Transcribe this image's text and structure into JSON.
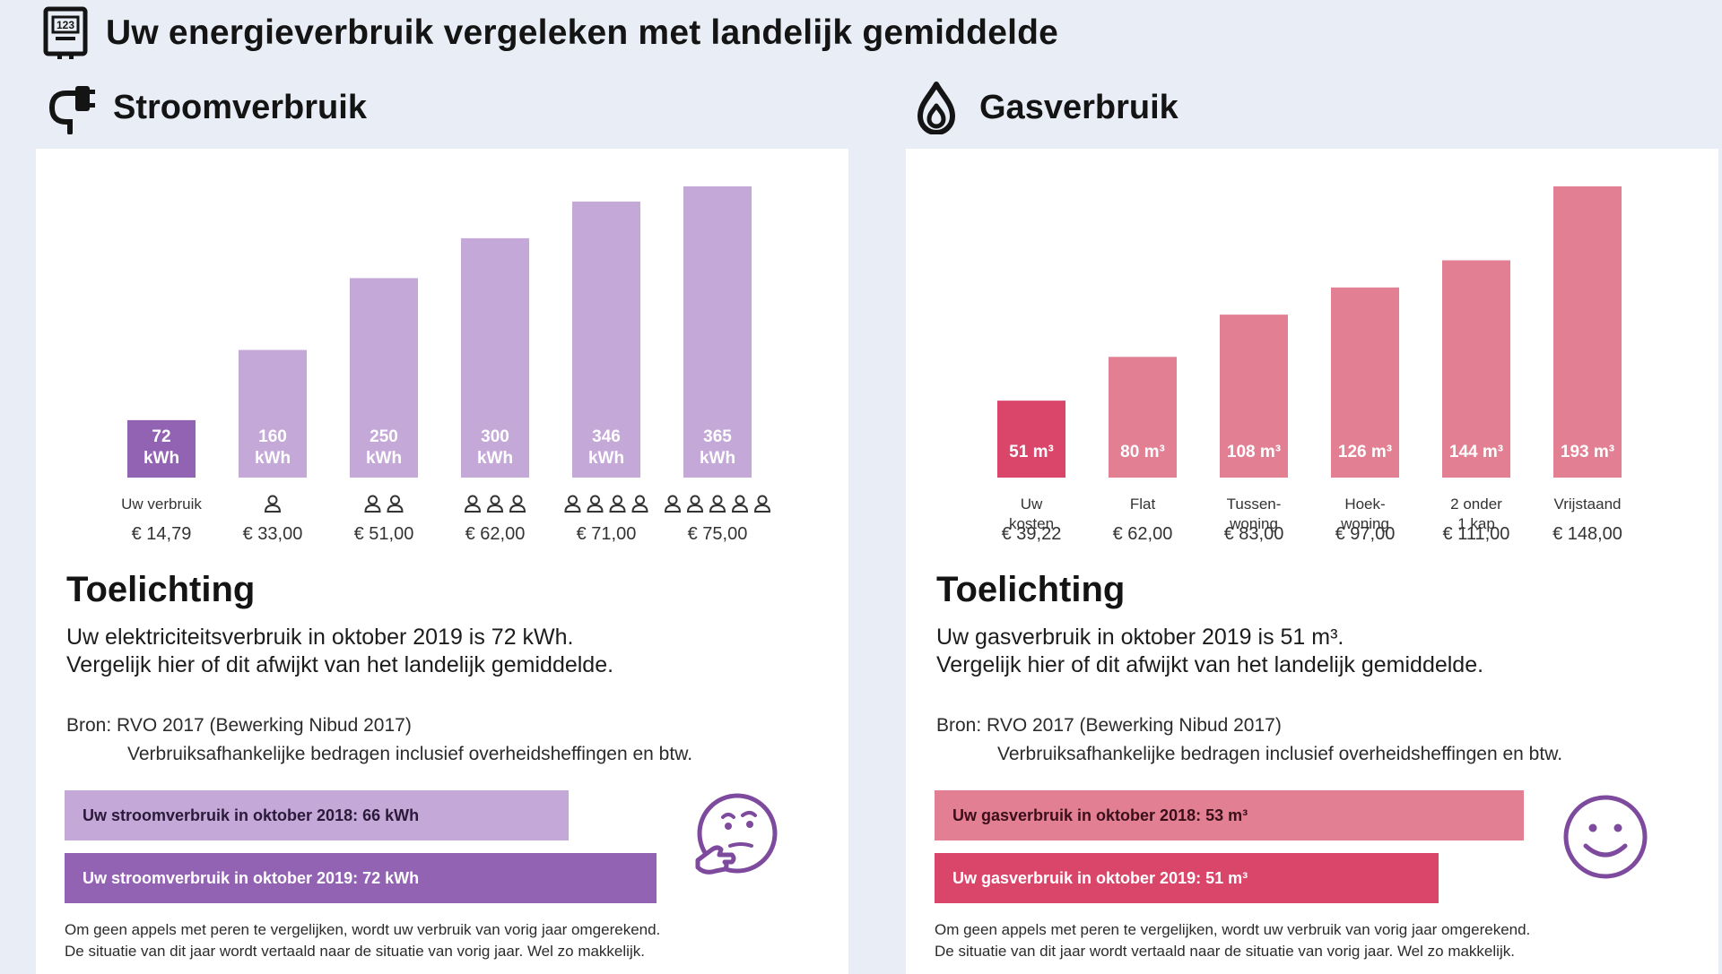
{
  "page": {
    "title": "Uw energieverbruik vergeleken met landelijk gemiddelde"
  },
  "icons": {
    "title": "meter-icon",
    "stroom": "plug-icon",
    "gas": "flame-icon"
  },
  "colors": {
    "purple_light": "#c4a8d7",
    "purple_dark": "#9263b2",
    "pink_light": "#e27f93",
    "pink_dark": "#d9466a",
    "face": "#7e4a9e",
    "background": "#e9eef6"
  },
  "stroom": {
    "title": "Stroomverbruik",
    "toelichting_title": "Toelichting",
    "text_line1": "Uw elektriciteitsverbruik in oktober 2019 is 72 kWh.",
    "text_line2": "Vergelijk hier of dit afwijkt van het landelijk gemiddelde.",
    "bron_line1": "Bron:  RVO 2017 (Bewerking Nibud 2017)",
    "bron_line2": "Verbruiksafhankelijke bedragen inclusief overheidsheffingen en btw.",
    "compare_2018": "Uw stroomverbruik in oktober 2018: 66 kWh",
    "compare_2019": "Uw stroomverbruik in oktober 2019: 72 kWh",
    "compare_values": {
      "2018": 66,
      "2019": 72
    },
    "face": "thinking-face-icon",
    "footnote_line1": "Om geen appels met peren te vergelijken, wordt uw verbruik van vorig jaar omgerekend.",
    "footnote_line2": "De situatie van dit jaar wordt vertaald naar de situatie van vorig jaar. Wel zo makkelijk."
  },
  "gas": {
    "title": "Gasverbruik",
    "toelichting_title": "Toelichting",
    "text_line1": "Uw gasverbruik in oktober 2019 is 51 m³.",
    "text_line2": "Vergelijk hier of dit afwijkt van het landelijk gemiddelde.",
    "bron_line1": "Bron:  RVO 2017 (Bewerking Nibud 2017)",
    "bron_line2": "Verbruiksafhankelijke bedragen inclusief overheidsheffingen en btw.",
    "compare_2018": "Uw gasverbruik in oktober 2018: 53 m³",
    "compare_2019": "Uw gasverbruik in oktober 2019: 51 m³",
    "compare_values": {
      "2018": 53,
      "2019": 51
    },
    "face": "smiley-face-icon",
    "footnote_line1": "Om geen appels met peren te vergelijken, wordt uw verbruik van vorig jaar omgerekend.",
    "footnote_line2": "De situatie van dit jaar wordt vertaald naar de situatie van vorig jaar. Wel zo makkelijk."
  },
  "chart_data": [
    {
      "type": "bar",
      "title": "Stroomverbruik",
      "unit": "kWh",
      "values": [
        72,
        160,
        250,
        300,
        346,
        365
      ],
      "bar_labels": [
        [
          "72",
          "kWh"
        ],
        [
          "160",
          "kWh"
        ],
        [
          "250",
          "kWh"
        ],
        [
          "300",
          "kWh"
        ],
        [
          "346",
          "kWh"
        ],
        [
          "365",
          "kWh"
        ]
      ],
      "categories": [
        "Uw verbruik",
        "1 persoon",
        "2 personen",
        "3 personen",
        "4 personen",
        "5 personen"
      ],
      "category_labels": [
        [
          "Uw verbruik"
        ],
        [],
        [],
        [],
        [],
        []
      ],
      "persons": [
        0,
        1,
        2,
        3,
        4,
        5
      ],
      "costs": [
        "€ 14,79",
        "€ 33,00",
        "€ 51,00",
        "€ 62,00",
        "€ 71,00",
        "€ 75,00"
      ],
      "highlight_index": 0,
      "colors": {
        "highlight": "#9263b2",
        "others": "#c4a8d7"
      },
      "ylim": [
        0,
        365
      ]
    },
    {
      "type": "bar",
      "title": "Gasverbruik",
      "unit": "m³",
      "values": [
        51,
        80,
        108,
        126,
        144,
        193
      ],
      "bar_labels": [
        [
          "51 m³"
        ],
        [
          "80 m³"
        ],
        [
          "108 m³"
        ],
        [
          "126 m³"
        ],
        [
          "144 m³"
        ],
        [
          "193 m³"
        ]
      ],
      "categories": [
        "Uw kosten",
        "Flat",
        "Tussenwoning",
        "Hoekwoning",
        "2 onder 1 kap",
        "Vrijstaand"
      ],
      "category_labels": [
        [
          "Uw",
          "kosten"
        ],
        [
          "Flat"
        ],
        [
          "Tussen-",
          "woning"
        ],
        [
          "Hoek-",
          "woning"
        ],
        [
          "2 onder",
          "1 kap"
        ],
        [
          "Vrijstaand"
        ]
      ],
      "costs": [
        "€ 39,22",
        "€ 62,00",
        "€ 83,00",
        "€ 97,00",
        "€ 111,00",
        "€ 148,00"
      ],
      "highlight_index": 0,
      "colors": {
        "highlight": "#d9466a",
        "others": "#e27f93"
      },
      "ylim": [
        0,
        193
      ]
    }
  ]
}
